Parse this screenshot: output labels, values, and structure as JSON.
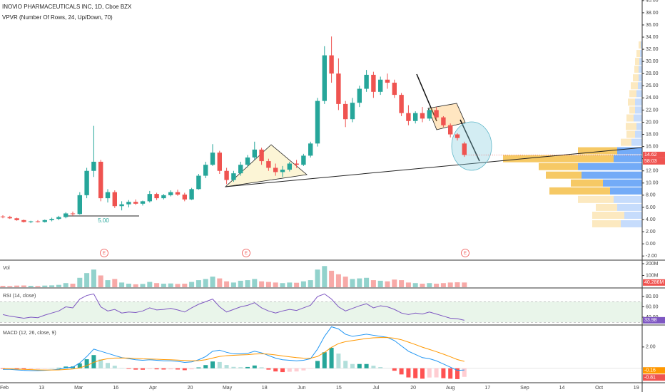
{
  "chart_data": [
    {
      "type": "candlestick",
      "title": "INOVIO PHARMACEUTICALS INC, 1D, Cboe BZX",
      "subtitle": "VPVR (Number Of Rows, 24, Up/Down, 70)",
      "up_color": "#26a69a",
      "down_color": "#ef5350",
      "ohlc": [
        [
          4.5,
          4.7,
          4.2,
          4.4
        ],
        [
          4.4,
          4.6,
          4.1,
          4.2
        ],
        [
          4.2,
          4.3,
          3.8,
          3.9
        ],
        [
          3.9,
          4.0,
          3.5,
          3.6
        ],
        [
          3.6,
          3.8,
          3.4,
          3.7
        ],
        [
          3.7,
          3.9,
          3.5,
          3.6
        ],
        [
          3.6,
          4.0,
          3.5,
          3.9
        ],
        [
          3.9,
          4.3,
          3.7,
          4.1
        ],
        [
          4.1,
          4.6,
          3.9,
          4.4
        ],
        [
          4.4,
          5.2,
          4.2,
          5.0
        ],
        [
          5.0,
          5.3,
          4.6,
          4.9
        ],
        [
          4.9,
          8.5,
          4.8,
          8.0
        ],
        [
          8.0,
          12.5,
          7.5,
          12.0
        ],
        [
          12.0,
          19.4,
          11.0,
          13.5
        ],
        [
          13.5,
          13.8,
          7.0,
          7.5
        ],
        [
          7.5,
          9.0,
          6.8,
          8.5
        ],
        [
          8.5,
          8.8,
          5.9,
          6.2
        ],
        [
          6.2,
          7.0,
          5.5,
          6.5
        ],
        [
          6.5,
          7.2,
          6.0,
          6.9
        ],
        [
          6.9,
          7.3,
          6.4,
          6.6
        ],
        [
          6.6,
          7.1,
          6.3,
          7.0
        ],
        [
          7.0,
          8.7,
          6.8,
          8.2
        ],
        [
          8.2,
          8.4,
          7.2,
          7.5
        ],
        [
          7.5,
          8.2,
          7.3,
          8.0
        ],
        [
          8.0,
          8.8,
          7.8,
          8.5
        ],
        [
          8.5,
          8.9,
          7.9,
          8.1
        ],
        [
          8.1,
          8.4,
          7.0,
          7.3
        ],
        [
          7.3,
          9.2,
          7.2,
          9.0
        ],
        [
          9.0,
          11.5,
          8.9,
          11.2
        ],
        [
          11.2,
          13.5,
          10.8,
          13.0
        ],
        [
          13.0,
          16.4,
          12.8,
          15.0
        ],
        [
          15.0,
          15.3,
          11.5,
          12.0
        ],
        [
          12.0,
          12.5,
          9.8,
          10.5
        ],
        [
          10.5,
          12.0,
          10.2,
          11.6
        ],
        [
          11.6,
          13.5,
          11.2,
          13.0
        ],
        [
          13.0,
          14.6,
          12.6,
          14.2
        ],
        [
          14.2,
          16.8,
          13.8,
          15.5
        ],
        [
          15.5,
          15.8,
          13.0,
          13.6
        ],
        [
          13.6,
          14.0,
          12.0,
          12.5
        ],
        [
          12.5,
          13.2,
          11.2,
          11.8
        ],
        [
          11.8,
          12.8,
          11.0,
          12.2
        ],
        [
          12.2,
          13.5,
          11.9,
          13.2
        ],
        [
          13.2,
          13.8,
          12.5,
          13.0
        ],
        [
          13.0,
          14.8,
          12.8,
          14.5
        ],
        [
          14.5,
          16.8,
          14.2,
          16.5
        ],
        [
          16.5,
          24.0,
          16.0,
          23.5
        ],
        [
          23.5,
          32.5,
          23.0,
          31.0
        ],
        [
          31.0,
          34.1,
          26.5,
          28.0
        ],
        [
          28.0,
          30.5,
          22.0,
          23.0
        ],
        [
          23.0,
          23.5,
          19.2,
          20.5
        ],
        [
          20.5,
          24.0,
          20.0,
          23.2
        ],
        [
          23.2,
          26.0,
          22.5,
          25.5
        ],
        [
          25.5,
          28.6,
          25.0,
          27.8
        ],
        [
          27.8,
          28.3,
          24.0,
          25.0
        ],
        [
          25.0,
          27.5,
          24.5,
          27.0
        ],
        [
          27.0,
          28.0,
          25.5,
          26.5
        ],
        [
          26.5,
          27.0,
          24.0,
          24.5
        ],
        [
          24.5,
          24.8,
          21.0,
          21.5
        ],
        [
          21.5,
          22.8,
          19.5,
          20.2
        ],
        [
          20.2,
          21.8,
          19.8,
          21.5
        ],
        [
          21.5,
          22.5,
          20.0,
          20.6
        ],
        [
          20.6,
          22.3,
          20.2,
          22.0
        ],
        [
          22.0,
          22.5,
          20.5,
          20.8
        ],
        [
          20.8,
          21.0,
          19.2,
          19.5
        ],
        [
          19.5,
          19.8,
          17.5,
          18.0
        ],
        [
          18.0,
          18.2,
          17.0,
          17.4
        ],
        [
          16.5,
          16.8,
          14.3,
          14.62
        ]
      ],
      "ylim": [
        -2.8,
        40.1
      ],
      "yticks": [
        {
          "value": 40,
          "label": "40.00"
        },
        {
          "value": 38,
          "label": "38.00"
        },
        {
          "value": 36,
          "label": "36.00"
        },
        {
          "value": 34,
          "label": "34.00"
        },
        {
          "value": 32,
          "label": "32.00"
        },
        {
          "value": 30,
          "label": "30.00"
        },
        {
          "value": 28,
          "label": "28.00"
        },
        {
          "value": 26,
          "label": "26.00"
        },
        {
          "value": 24,
          "label": "24.00"
        },
        {
          "value": 22,
          "label": "22.00"
        },
        {
          "value": 20,
          "label": "20.00"
        },
        {
          "value": 18,
          "label": "18.00"
        },
        {
          "value": 16,
          "label": "16.00"
        },
        {
          "value": 14,
          "label": "14.00"
        },
        {
          "value": 12,
          "label": "12.00"
        },
        {
          "value": 10,
          "label": "10.00"
        },
        {
          "value": 8,
          "label": "8.00"
        },
        {
          "value": 6,
          "label": "6.00"
        },
        {
          "value": 4,
          "label": "4.00"
        },
        {
          "value": 2,
          "label": "2.00"
        },
        {
          "value": 0,
          "label": "0.00"
        },
        {
          "value": -2,
          "label": "-2.00"
        }
      ],
      "last_labels": [
        "14.62",
        "58:03"
      ],
      "events": [
        "E",
        "E",
        "E"
      ],
      "annotations": [
        "5.00"
      ],
      "volume_profile": {
        "price": [
          3.3,
          4.7,
          6.0,
          7.3,
          8.7,
          10.0,
          11.3,
          12.7,
          14.0,
          15.3,
          16.7,
          18.0,
          19.3,
          20.7,
          22.0,
          23.3,
          24.7,
          26.0,
          27.3,
          28.7,
          30.0,
          31.3,
          32.7
        ],
        "up": [
          30,
          25,
          35,
          40,
          45,
          55,
          85,
          90,
          40,
          35,
          15,
          10,
          8,
          12,
          10,
          10,
          8,
          6,
          5,
          5,
          4,
          3,
          2
        ],
        "down": [
          40,
          45,
          30,
          50,
          85,
          45,
          50,
          55,
          155,
          55,
          15,
          12,
          15,
          10,
          8,
          10,
          10,
          10,
          8,
          6,
          6,
          5,
          3
        ],
        "up_color": "#5b9cf6",
        "down_color": "#f5c04a",
        "value_area": [
          7.4,
          16.6
        ]
      },
      "x_labels": [
        "Feb",
        "13",
        "Mar",
        "16",
        "Apr",
        "20",
        "May",
        "18",
        "Jun",
        "15",
        "Jul",
        "20",
        "Aug",
        "17",
        "Sep",
        "14",
        "Oct",
        "19"
      ]
    },
    {
      "type": "bar",
      "title": "Vol",
      "up_color": "rgba(38,166,154,0.5)",
      "down_color": "rgba(239,83,80,0.5)",
      "values": [
        12,
        10,
        14,
        15,
        12,
        10,
        14,
        16,
        20,
        35,
        30,
        80,
        120,
        150,
        100,
        60,
        70,
        40,
        30,
        25,
        28,
        45,
        35,
        30,
        32,
        28,
        30,
        45,
        60,
        70,
        90,
        75,
        50,
        40,
        55,
        60,
        70,
        50,
        45,
        40,
        35,
        40,
        38,
        50,
        60,
        150,
        180,
        140,
        110,
        90,
        70,
        75,
        80,
        60,
        55,
        50,
        65,
        60,
        40,
        35,
        30,
        35,
        30,
        35,
        40,
        42,
        40.286
      ],
      "ylim": [
        0,
        224
      ],
      "yticks": [
        {
          "value": 200,
          "label": "200M"
        },
        {
          "value": 100,
          "label": "100M"
        }
      ],
      "last_labels": [
        "40.286M"
      ]
    },
    {
      "type": "line",
      "title": "RSI (14, close)",
      "color": "#7e57c2",
      "values": [
        45,
        42,
        40,
        38,
        40,
        39,
        44,
        48,
        52,
        60,
        58,
        75,
        82,
        85,
        60,
        52,
        55,
        48,
        50,
        49,
        52,
        58,
        54,
        55,
        57,
        54,
        50,
        58,
        65,
        70,
        75,
        60,
        50,
        55,
        60,
        63,
        68,
        58,
        52,
        48,
        52,
        55,
        53,
        58,
        63,
        80,
        85,
        75,
        60,
        52,
        57,
        62,
        66,
        58,
        62,
        60,
        55,
        48,
        45,
        48,
        46,
        50,
        46,
        42,
        38,
        37,
        33.98
      ],
      "band": [
        30,
        70
      ],
      "band_color": "rgba(76,175,80,0.12)",
      "ylim": [
        26.2,
        95.2
      ],
      "yticks": [
        {
          "value": 80,
          "label": "80.00"
        },
        {
          "value": 60,
          "label": "60.00"
        },
        {
          "value": 40,
          "label": "40.00"
        }
      ],
      "last_labels": [
        "33.98"
      ]
    },
    {
      "type": "macd",
      "title": "MACD (12, 26, close, 9)",
      "series": [
        {
          "name": "MACD",
          "color": "#2196f3",
          "values": [
            -0.1,
            -0.1,
            -0.15,
            -0.2,
            -0.22,
            -0.22,
            -0.2,
            -0.15,
            -0.1,
            0.05,
            0.1,
            0.5,
            1.1,
            1.8,
            1.6,
            1.4,
            1.2,
            1.0,
            0.9,
            0.8,
            0.75,
            0.8,
            0.75,
            0.7,
            0.7,
            0.65,
            0.55,
            0.6,
            0.8,
            1.1,
            1.6,
            1.7,
            1.5,
            1.35,
            1.35,
            1.4,
            1.6,
            1.45,
            1.2,
            0.95,
            0.8,
            0.75,
            0.7,
            0.75,
            0.9,
            1.8,
            3.0,
            3.9,
            3.7,
            3.2,
            3.0,
            3.1,
            3.2,
            3.1,
            3.0,
            2.9,
            2.6,
            2.1,
            1.6,
            1.3,
            1.0,
            0.9,
            0.7,
            0.4,
            0.1,
            -0.2,
            -0.16
          ]
        },
        {
          "name": "Signal",
          "color": "#ff9800",
          "values": [
            -0.05,
            -0.06,
            -0.08,
            -0.1,
            -0.13,
            -0.15,
            -0.16,
            -0.16,
            -0.15,
            -0.11,
            -0.07,
            0.04,
            0.25,
            0.56,
            0.77,
            0.9,
            0.96,
            0.97,
            0.96,
            0.93,
            0.89,
            0.87,
            0.85,
            0.82,
            0.8,
            0.77,
            0.73,
            0.7,
            0.72,
            0.8,
            0.96,
            1.11,
            1.19,
            1.22,
            1.25,
            1.28,
            1.34,
            1.36,
            1.33,
            1.25,
            1.16,
            1.08,
            1.0,
            0.95,
            0.94,
            1.11,
            1.49,
            1.97,
            2.32,
            2.5,
            2.6,
            2.7,
            2.8,
            2.86,
            2.89,
            2.89,
            2.83,
            2.68,
            2.46,
            2.23,
            1.98,
            1.77,
            1.56,
            1.33,
            1.08,
            0.82,
            0.65
          ]
        }
      ],
      "histogram": [
        -0.05,
        -0.04,
        -0.07,
        -0.1,
        -0.09,
        -0.07,
        -0.04,
        0.01,
        0.05,
        0.16,
        0.17,
        0.46,
        0.85,
        1.24,
        0.83,
        0.5,
        0.24,
        0.03,
        -0.06,
        -0.13,
        -0.14,
        -0.07,
        -0.1,
        -0.12,
        -0.1,
        -0.12,
        -0.18,
        -0.1,
        0.08,
        0.3,
        0.64,
        0.59,
        0.31,
        0.13,
        0.1,
        0.12,
        0.26,
        0.09,
        -0.13,
        -0.3,
        -0.36,
        -0.33,
        -0.3,
        -0.2,
        -0.04,
        0.69,
        1.51,
        1.93,
        1.38,
        0.7,
        0.4,
        0.4,
        0.4,
        0.24,
        0.11,
        0.01,
        -0.23,
        -0.58,
        -0.86,
        -0.93,
        -0.98,
        -0.87,
        -0.86,
        -0.93,
        -0.98,
        -1.02,
        -0.81
      ],
      "hist_colors": [
        "#26a69a",
        "#b2dfdb",
        "#ff5252",
        "#ffcdd2"
      ],
      "ylim": [
        -1.36,
        4.0
      ],
      "yticks": [
        {
          "value": 2,
          "label": "2.00"
        }
      ],
      "last_labels": [
        "-0.16",
        "-0.81"
      ],
      "label_colors": [
        "#ff9800",
        "#ef5350"
      ]
    }
  ]
}
